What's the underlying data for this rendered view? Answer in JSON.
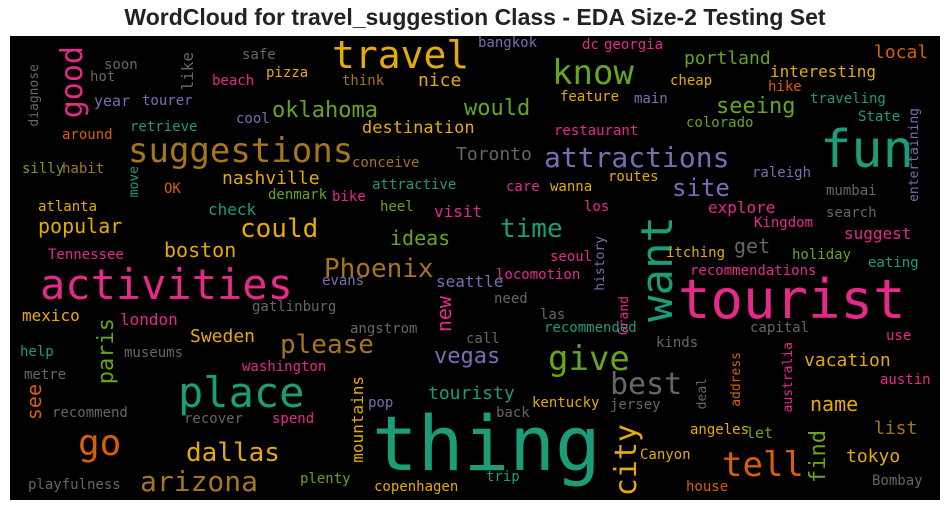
{
  "chart_data": {
    "type": "wordcloud",
    "title": "WordCloud for travel_suggestion Class - EDA Size-2 Testing Set",
    "words": [
      {
        "text": "thing",
        "color": "#1b9e77"
      },
      {
        "text": "tourist",
        "color": "#e7298a"
      },
      {
        "text": "fun",
        "color": "#1b9e77"
      },
      {
        "text": "activities",
        "color": "#e7298a"
      },
      {
        "text": "place",
        "color": "#1b9e77"
      },
      {
        "text": "travel",
        "color": "#e6ab02"
      },
      {
        "text": "suggestions",
        "color": "#a6761d"
      },
      {
        "text": "want",
        "color": "#1b9e77"
      },
      {
        "text": "know",
        "color": "#66a61e"
      },
      {
        "text": "give",
        "color": "#66a61e"
      },
      {
        "text": "tell",
        "color": "#d95f02"
      },
      {
        "text": "go",
        "color": "#d95f02"
      },
      {
        "text": "good",
        "color": "#e7298a"
      },
      {
        "text": "attractions",
        "color": "#7570b3"
      },
      {
        "text": "arizona",
        "color": "#a6761d"
      },
      {
        "text": "city",
        "color": "#e6ab02"
      },
      {
        "text": "best",
        "color": "#666666"
      },
      {
        "text": "Phoenix",
        "color": "#a6761d"
      },
      {
        "text": "could",
        "color": "#e6ab02"
      },
      {
        "text": "dallas",
        "color": "#e6ab02"
      },
      {
        "text": "time",
        "color": "#1b9e77"
      },
      {
        "text": "please",
        "color": "#a6761d"
      },
      {
        "text": "site",
        "color": "#7570b3"
      },
      {
        "text": "would",
        "color": "#66a61e"
      },
      {
        "text": "oklahoma",
        "color": "#66a61e"
      },
      {
        "text": "seeing",
        "color": "#66a61e"
      },
      {
        "text": "vegas",
        "color": "#7570b3"
      },
      {
        "text": "paris",
        "color": "#66a61e"
      },
      {
        "text": "boston",
        "color": "#e6ab02"
      },
      {
        "text": "popular",
        "color": "#e6ab02"
      },
      {
        "text": "ideas",
        "color": "#66a61e"
      },
      {
        "text": "name",
        "color": "#e6ab02"
      },
      {
        "text": "find",
        "color": "#66a61e"
      },
      {
        "text": "portland",
        "color": "#66a61e"
      },
      {
        "text": "new",
        "color": "#e7298a"
      },
      {
        "text": "nashville",
        "color": "#e6ab02"
      },
      {
        "text": "see",
        "color": "#d95f02"
      },
      {
        "text": "get",
        "color": "#666666"
      },
      {
        "text": "vacation",
        "color": "#e6ab02"
      },
      {
        "text": "Toronto",
        "color": "#666666"
      },
      {
        "text": "touristy",
        "color": "#1b9e77"
      },
      {
        "text": "destination",
        "color": "#e6ab02"
      },
      {
        "text": "nice",
        "color": "#e6ab02"
      },
      {
        "text": "local",
        "color": "#d95f02"
      },
      {
        "text": "interesting",
        "color": "#e6ab02"
      },
      {
        "text": "tokyo",
        "color": "#e6ab02"
      },
      {
        "text": "list",
        "color": "#a6761d"
      },
      {
        "text": "mountains",
        "color": "#e6ab02"
      },
      {
        "text": "Sweden",
        "color": "#e6ab02"
      },
      {
        "text": "london",
        "color": "#e7298a"
      },
      {
        "text": "mexico",
        "color": "#e6ab02"
      },
      {
        "text": "like",
        "color": "#666666"
      },
      {
        "text": "seattle",
        "color": "#7570b3"
      },
      {
        "text": "check",
        "color": "#1b9e77"
      },
      {
        "text": "explore",
        "color": "#e7298a"
      },
      {
        "text": "suggest",
        "color": "#e7298a"
      },
      {
        "text": "year",
        "color": "#7570b3"
      },
      {
        "text": "visit",
        "color": "#e7298a"
      },
      {
        "text": "let",
        "color": "#66a61e"
      },
      {
        "text": "washington",
        "color": "#e7298a"
      },
      {
        "text": "kentucky",
        "color": "#e6ab02"
      },
      {
        "text": "jersey",
        "color": "#666666"
      },
      {
        "text": "angeles",
        "color": "#e6ab02"
      },
      {
        "text": "Canyon",
        "color": "#e6ab02"
      },
      {
        "text": "house",
        "color": "#d95f02"
      },
      {
        "text": "Bombay",
        "color": "#666666"
      },
      {
        "text": "trip",
        "color": "#1b9e77"
      },
      {
        "text": "copenhagen",
        "color": "#e6ab02"
      },
      {
        "text": "plenty",
        "color": "#66a61e"
      },
      {
        "text": "playfulness",
        "color": "#666666"
      },
      {
        "text": "spend",
        "color": "#e7298a"
      },
      {
        "text": "recover",
        "color": "#666666"
      },
      {
        "text": "recommend",
        "color": "#666666"
      },
      {
        "text": "metre",
        "color": "#666666"
      },
      {
        "text": "help",
        "color": "#1b9e77"
      },
      {
        "text": "museums",
        "color": "#666666"
      },
      {
        "text": "gatlinburg",
        "color": "#666666"
      },
      {
        "text": "angstrom",
        "color": "#666666"
      },
      {
        "text": "evans",
        "color": "#7570b3"
      },
      {
        "text": "call",
        "color": "#666666"
      },
      {
        "text": "need",
        "color": "#666666"
      },
      {
        "text": "las",
        "color": "#666666"
      },
      {
        "text": "recommended",
        "color": "#1b9e77"
      },
      {
        "text": "locomotion",
        "color": "#e7298a"
      },
      {
        "text": "seoul",
        "color": "#e7298a"
      },
      {
        "text": "history",
        "color": "#7570b3"
      },
      {
        "text": "Grand",
        "color": "#e7298a"
      },
      {
        "text": "kinds",
        "color": "#666666"
      },
      {
        "text": "capital",
        "color": "#666666"
      },
      {
        "text": "use",
        "color": "#e7298a"
      },
      {
        "text": "austin",
        "color": "#e7298a"
      },
      {
        "text": "australia",
        "color": "#e7298a"
      },
      {
        "text": "address",
        "color": "#d95f02"
      },
      {
        "text": "deal",
        "color": "#666666"
      },
      {
        "text": "pop",
        "color": "#7570b3"
      },
      {
        "text": "back",
        "color": "#666666"
      },
      {
        "text": "recommendations",
        "color": "#e7298a"
      },
      {
        "text": "eating",
        "color": "#1b9e77"
      },
      {
        "text": "holiday",
        "color": "#66a61e"
      },
      {
        "text": "itching",
        "color": "#e6ab02"
      },
      {
        "text": "Kingdom",
        "color": "#e7298a"
      },
      {
        "text": "search",
        "color": "#666666"
      },
      {
        "text": "mumbai",
        "color": "#666666"
      },
      {
        "text": "raleigh",
        "color": "#7570b3"
      },
      {
        "text": "entertaining",
        "color": "#7570b3"
      },
      {
        "text": "State",
        "color": "#1b9e77"
      },
      {
        "text": "traveling",
        "color": "#1b9e77"
      },
      {
        "text": "colorado",
        "color": "#66a61e"
      },
      {
        "text": "hike",
        "color": "#d95f02"
      },
      {
        "text": "cheap",
        "color": "#e6ab02"
      },
      {
        "text": "main",
        "color": "#7570b3"
      },
      {
        "text": "feature",
        "color": "#e6ab02"
      },
      {
        "text": "restaurant",
        "color": "#e7298a"
      },
      {
        "text": "routes",
        "color": "#e6ab02"
      },
      {
        "text": "wanna",
        "color": "#e6ab02"
      },
      {
        "text": "care",
        "color": "#e7298a"
      },
      {
        "text": "los",
        "color": "#e7298a"
      },
      {
        "text": "heel",
        "color": "#66a61e"
      },
      {
        "text": "bike",
        "color": "#e7298a"
      },
      {
        "text": "denmark",
        "color": "#66a61e"
      },
      {
        "text": "attractive",
        "color": "#1b9e77"
      },
      {
        "text": "conceive",
        "color": "#a6761d"
      },
      {
        "text": "cool",
        "color": "#7570b3"
      },
      {
        "text": "retrieve",
        "color": "#1b9e77"
      },
      {
        "text": "tourer",
        "color": "#7570b3"
      },
      {
        "text": "hot",
        "color": "#666666"
      },
      {
        "text": "soon",
        "color": "#666666"
      },
      {
        "text": "safe",
        "color": "#666666"
      },
      {
        "text": "beach",
        "color": "#e7298a"
      },
      {
        "text": "pizza",
        "color": "#e6ab02"
      },
      {
        "text": "think",
        "color": "#a6761d"
      },
      {
        "text": "bangkok",
        "color": "#7570b3"
      },
      {
        "text": "dc",
        "color": "#e7298a"
      },
      {
        "text": "georgia",
        "color": "#e7298a"
      },
      {
        "text": "diagnose",
        "color": "#666666"
      },
      {
        "text": "around",
        "color": "#d95f02"
      },
      {
        "text": "silly",
        "color": "#66a61e"
      },
      {
        "text": "habit",
        "color": "#a6761d"
      },
      {
        "text": "move",
        "color": "#1b9e77"
      },
      {
        "text": "OK",
        "color": "#d95f02"
      },
      {
        "text": "atlanta",
        "color": "#e6ab02"
      },
      {
        "text": "Tennessee",
        "color": "#e7298a"
      }
    ]
  }
}
